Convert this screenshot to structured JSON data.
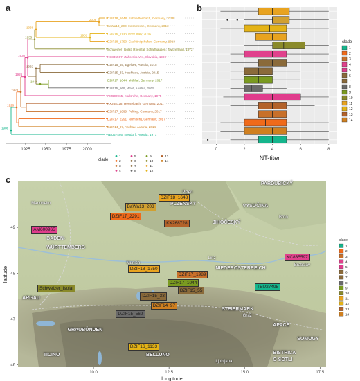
{
  "panels": {
    "a": "a",
    "b": "b",
    "c": "c"
  },
  "tree": {
    "tips": [
      {
        "label": "DZIF18_1648, Schnaittenbach, Germany, 2018",
        "clade": "11",
        "color": "#e8a320"
      },
      {
        "label": "BaWa13_203, Hassmersh., Germany, 2013",
        "clade": "11",
        "color": "#d1a030"
      },
      {
        "label": "DZIF16_1133, Prov. Italy, 2016",
        "clade": "12",
        "color": "#e4b316"
      },
      {
        "label": "DZIF18_1750, Gaukönigshofen, Germany, 2018",
        "clade": "11",
        "color": "#e8a320"
      },
      {
        "label": "Schweizer_Isolat, Rheinfall Schaffhausen, Switzerland, 1972",
        "clade": "10",
        "color": "#8a8a2a"
      },
      {
        "label": "KC835597, Zahorska Ves, Slovakia, 1990",
        "clade": "4",
        "color": "#e0418c"
      },
      {
        "label": "DZIF15_55, Egelsee, Austria, 2015",
        "clade": "6",
        "color": "#8a6a3a"
      },
      {
        "label": "DZIF15_33, Hechtsee, Austria, 2015",
        "clade": "7",
        "color": "#8a6a3a"
      },
      {
        "label": "DZIF17_1044, Mühltal, Germany, 2017",
        "clade": "9",
        "color": "#7a9a20"
      },
      {
        "label": "DZIF15_569, Wald, Austria, 2015",
        "clade": "8",
        "color": "#6a6a6a"
      },
      {
        "label": "AM600965, Karlsruhe, Germany, 1975",
        "clade": "5",
        "color": "#e03c8c"
      },
      {
        "label": "KX268728, Hesselbach, Germany, 2011",
        "clade": "13",
        "color": "#b3622a"
      },
      {
        "label": "DZIF17_1989, Pelting, Germany, 2017",
        "clade": "3",
        "color": "#c8702a"
      },
      {
        "label": "DZIF17_2291, Nürnberg, Germany, 2017",
        "clade": "2",
        "color": "#f06a1a"
      },
      {
        "label": "DZIF14_97, Aschau, Austria, 2014",
        "clade": "14",
        "color": "#d08020"
      },
      {
        "label": "TEU27495, Neudörfl, Austria, 1971",
        "clade": "1",
        "color": "#15b58c"
      }
    ],
    "node_labels": [
      "2008",
      "1981",
      "1936",
      "1935",
      "1930",
      "1932",
      "1944",
      "1926",
      "1928",
      "1920",
      "1908"
    ],
    "axis_ticks": [
      "1925",
      "1950",
      "1975",
      "2000"
    ],
    "legend_title": "clade",
    "legend_items": [
      "1",
      "2",
      "3",
      "4",
      "5",
      "6",
      "7",
      "8",
      "9",
      "10",
      "11",
      "12",
      "13",
      "14"
    ]
  },
  "chart_data": {
    "type": "box",
    "xlabel": "NT-titer",
    "ylabel": "",
    "xlim": [
      -1,
      8.6
    ],
    "x_ticks": [
      "0",
      "2",
      "4",
      "6",
      "8"
    ],
    "grid": true,
    "legend_position": "right",
    "legend_title": "clade",
    "categories": [
      "11",
      "11",
      "12",
      "11",
      "10",
      "4",
      "6",
      "7",
      "9",
      "8",
      "5",
      "13",
      "3",
      "2",
      "14",
      "1"
    ],
    "colors": [
      "#e8a320",
      "#d1a030",
      "#e4b316",
      "#e8a320",
      "#8a8a2a",
      "#e0418c",
      "#8a6a3a",
      "#8a6a3a",
      "#7a9a20",
      "#6a6a6a",
      "#e03c8c",
      "#b3622a",
      "#c8702a",
      "#f06a1a",
      "#d08020",
      "#15b58c"
    ],
    "boxes": [
      {
        "q1": 3.0,
        "median": 4.0,
        "q3": 5.2,
        "whisker_low": 0.3,
        "whisker_high": 8.0,
        "outliers": []
      },
      {
        "q1": 4.0,
        "median": 4.0,
        "q3": 5.2,
        "whisker_low": 2.0,
        "whisker_high": 8.0,
        "outliers": [
          0.8,
          1.5
        ]
      },
      {
        "q1": 2.0,
        "median": 3.8,
        "q3": 5.0,
        "whisker_low": 0.3,
        "whisker_high": 8.0,
        "outliers": []
      },
      {
        "q1": 2.8,
        "median": 4.0,
        "q3": 5.0,
        "whisker_low": 1.0,
        "whisker_high": 7.0,
        "outliers": []
      },
      {
        "q1": 4.0,
        "median": 4.8,
        "q3": 6.3,
        "whisker_low": 2.0,
        "whisker_high": 8.0,
        "outliers": []
      },
      {
        "q1": 2.0,
        "median": 4.0,
        "q3": 5.0,
        "whisker_low": 1.0,
        "whisker_high": 8.0,
        "outliers": []
      },
      {
        "q1": 3.0,
        "median": 4.0,
        "q3": 5.0,
        "whisker_low": 1.0,
        "whisker_high": 8.0,
        "outliers": []
      },
      {
        "q1": 2.0,
        "median": 3.0,
        "q3": 4.0,
        "whisker_low": 1.0,
        "whisker_high": 6.0,
        "outliers": []
      },
      {
        "q1": 2.0,
        "median": 3.0,
        "q3": 4.0,
        "whisker_low": 1.0,
        "whisker_high": 6.0,
        "outliers": []
      },
      {
        "q1": 2.0,
        "median": 2.5,
        "q3": 3.3,
        "whisker_low": 1.0,
        "whisker_high": 5.0,
        "outliers": []
      },
      {
        "q1": 2.0,
        "median": 4.0,
        "q3": 6.0,
        "whisker_low": 0.5,
        "whisker_high": 8.0,
        "outliers": []
      },
      {
        "q1": 3.0,
        "median": 4.0,
        "q3": 5.0,
        "whisker_low": 1.0,
        "whisker_high": 7.0,
        "outliers": []
      },
      {
        "q1": 3.0,
        "median": 4.0,
        "q3": 5.0,
        "whisker_low": 1.0,
        "whisker_high": 7.0,
        "outliers": []
      },
      {
        "q1": 2.0,
        "median": 3.5,
        "q3": 5.0,
        "whisker_low": 0.3,
        "whisker_high": 8.0,
        "outliers": []
      },
      {
        "q1": 2.0,
        "median": 4.0,
        "q3": 5.0,
        "whisker_low": 0.3,
        "whisker_high": 8.0,
        "outliers": []
      },
      {
        "q1": 3.0,
        "median": 4.0,
        "q3": 5.0,
        "whisker_low": 1.0,
        "whisker_high": 8.0,
        "outliers": [
          -0.6
        ]
      }
    ]
  },
  "map": {
    "xlabel": "longitude",
    "ylabel": "latitude",
    "x_ticks": [
      "10.0",
      "12.5",
      "15.0",
      "17.5"
    ],
    "y_ticks": [
      "49",
      "48",
      "47",
      "46"
    ],
    "x_range": [
      7.5,
      17.7
    ],
    "y_range": [
      45.95,
      50.0
    ],
    "legend_title": "clade",
    "legend_items": [
      "1",
      "2",
      "3",
      "4",
      "5",
      "6",
      "7",
      "8",
      "9",
      "10",
      "11",
      "12",
      "13",
      "14"
    ],
    "legend_colors": [
      "#15b58c",
      "#f06a1a",
      "#c8702a",
      "#e0418c",
      "#e03c8c",
      "#8a6a3a",
      "#8a6a3a",
      "#6a6a6a",
      "#7a9a20",
      "#8a8a2a",
      "#e8a320",
      "#e4b316",
      "#b3622a",
      "#d08020"
    ],
    "sample_labels": [
      {
        "text": "DZIF18_1648",
        "lon": 12.6,
        "lat": 49.65,
        "color": "#e8a320"
      },
      {
        "text": "BaWa13_203",
        "lon": 11.5,
        "lat": 49.45,
        "color": "#d1a030"
      },
      {
        "text": "DZIF17_2291",
        "lon": 11.0,
        "lat": 49.25,
        "color": "#f06a1a"
      },
      {
        "text": "KX268728",
        "lon": 12.8,
        "lat": 49.1,
        "color": "#b3622a"
      },
      {
        "text": "AM600965",
        "lon": 8.4,
        "lat": 48.95,
        "color": "#e03c8c"
      },
      {
        "text": "KC835597",
        "lon": 17.05,
        "lat": 48.35,
        "color": "#e0418c"
      },
      {
        "text": "DZIF18_1750",
        "lon": 11.6,
        "lat": 48.1,
        "color": "#e8a320"
      },
      {
        "text": "DZIF17_1989",
        "lon": 13.2,
        "lat": 47.97,
        "color": "#c8702a"
      },
      {
        "text": "DZIF17_1044",
        "lon": 12.9,
        "lat": 47.8,
        "color": "#7a9a20"
      },
      {
        "text": "DZIF15_55",
        "lon": 13.25,
        "lat": 47.63,
        "color": "#8a6a3a"
      },
      {
        "text": "TEU27495",
        "lon": 15.8,
        "lat": 47.7,
        "color": "#15b58c"
      },
      {
        "text": "Schweizer_Isolat",
        "lon": 8.6,
        "lat": 47.68,
        "color": "#8a8a2a"
      },
      {
        "text": "DZIF15_33",
        "lon": 12.0,
        "lat": 47.5,
        "color": "#8a6a3a"
      },
      {
        "text": "DZIF14_97",
        "lon": 12.35,
        "lat": 47.3,
        "color": "#d08020"
      },
      {
        "text": "DZIF15_569",
        "lon": 11.2,
        "lat": 47.12,
        "color": "#6a6a6a"
      },
      {
        "text": "DZIF16_1133",
        "lon": 11.6,
        "lat": 46.4,
        "color": "#e4b316"
      }
    ],
    "places": [
      {
        "text": "Plzen",
        "lon": 13.4,
        "lat": 49.75,
        "kind": "city"
      },
      {
        "text": "PLZEŇSKY",
        "lon": 13.0,
        "lat": 49.5,
        "kind": "region"
      },
      {
        "text": "PARDUBICKÝ",
        "lon": 16.0,
        "lat": 49.95,
        "kind": "region"
      },
      {
        "text": "VYSOČINA",
        "lon": 15.4,
        "lat": 49.45,
        "kind": "region"
      },
      {
        "text": "JIHOČESKÝ",
        "lon": 14.4,
        "lat": 49.1,
        "kind": "region"
      },
      {
        "text": "Mannheim",
        "lon": 8.4,
        "lat": 49.5,
        "kind": "city"
      },
      {
        "text": "Brno",
        "lon": 16.6,
        "lat": 49.2,
        "kind": "city"
      },
      {
        "text": "BADEN-",
        "lon": 8.9,
        "lat": 48.75,
        "kind": "region"
      },
      {
        "text": "WÜRTTEMBERG",
        "lon": 8.9,
        "lat": 48.55,
        "kind": "region"
      },
      {
        "text": "Munich",
        "lon": 11.55,
        "lat": 48.2,
        "kind": "city"
      },
      {
        "text": "Linz",
        "lon": 14.25,
        "lat": 48.3,
        "kind": "city"
      },
      {
        "text": "NIEDERÖSTERREICH",
        "lon": 14.5,
        "lat": 48.1,
        "kind": "region"
      },
      {
        "text": "Bratislav",
        "lon": 17.1,
        "lat": 48.15,
        "kind": "city"
      },
      {
        "text": "ARGAU",
        "lon": 8.1,
        "lat": 47.45,
        "kind": "region"
      },
      {
        "text": "STEIERMARK",
        "lon": 14.7,
        "lat": 47.2,
        "kind": "region"
      },
      {
        "text": "Graz",
        "lon": 15.4,
        "lat": 47.05,
        "kind": "city"
      },
      {
        "text": "GRAUBÜNDEN",
        "lon": 9.6,
        "lat": 46.75,
        "kind": "region"
      },
      {
        "text": "APACE",
        "lon": 16.4,
        "lat": 46.85,
        "kind": "region"
      },
      {
        "text": "SOMOGY",
        "lon": 17.2,
        "lat": 46.55,
        "kind": "region"
      },
      {
        "text": "TICINO",
        "lon": 8.8,
        "lat": 46.2,
        "kind": "region"
      },
      {
        "text": "BELLUNO",
        "lon": 12.2,
        "lat": 46.2,
        "kind": "region"
      },
      {
        "text": "Ljubljana",
        "lon": 14.5,
        "lat": 46.05,
        "kind": "city"
      },
      {
        "text": "BISTRICA",
        "lon": 16.4,
        "lat": 46.25,
        "kind": "region"
      },
      {
        "text": "O SOTLI",
        "lon": 16.4,
        "lat": 46.1,
        "kind": "region"
      }
    ]
  }
}
